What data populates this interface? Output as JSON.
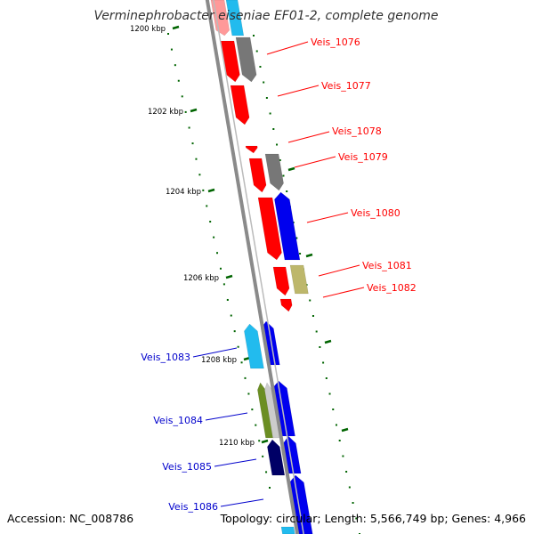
{
  "title": "Verminephrobacter eiseniae EF01-2, complete genome",
  "footer": {
    "accession": "Accession: NC_008786",
    "summary": "Topology: circular; Length: 5,566,749 bp; Genes: 4,966"
  },
  "colors": {
    "red_gene": "#ff0000",
    "blue_gene": "#0000ee",
    "cyan_gene": "#22bbee",
    "gray_gene": "#777777",
    "khaki_gene": "#bdb76b",
    "olive_gene": "#6b8e23",
    "navy_gene": "#000066",
    "light_gray_gene": "#cccccc",
    "tick_green": "#006400",
    "backbone": "#8a8a8a",
    "label_red": "#ff0000",
    "label_blue": "#0000cc"
  },
  "ruler": [
    {
      "label": "1200 kbp"
    },
    {
      "label": "1202 kbp"
    },
    {
      "label": "1204 kbp"
    },
    {
      "label": "1206 kbp"
    },
    {
      "label": "1208 kbp"
    },
    {
      "label": "1210 kbp"
    }
  ],
  "gene_labels": [
    {
      "name": "Veis_1076",
      "color": "red"
    },
    {
      "name": "Veis_1077",
      "color": "red"
    },
    {
      "name": "Veis_1078",
      "color": "red"
    },
    {
      "name": "Veis_1079",
      "color": "red"
    },
    {
      "name": "Veis_1080",
      "color": "red"
    },
    {
      "name": "Veis_1081",
      "color": "red"
    },
    {
      "name": "Veis_1082",
      "color": "red"
    },
    {
      "name": "Veis_1083",
      "color": "blue"
    },
    {
      "name": "Veis_1084",
      "color": "blue"
    },
    {
      "name": "Veis_1085",
      "color": "blue"
    },
    {
      "name": "Veis_1086",
      "color": "blue"
    }
  ]
}
